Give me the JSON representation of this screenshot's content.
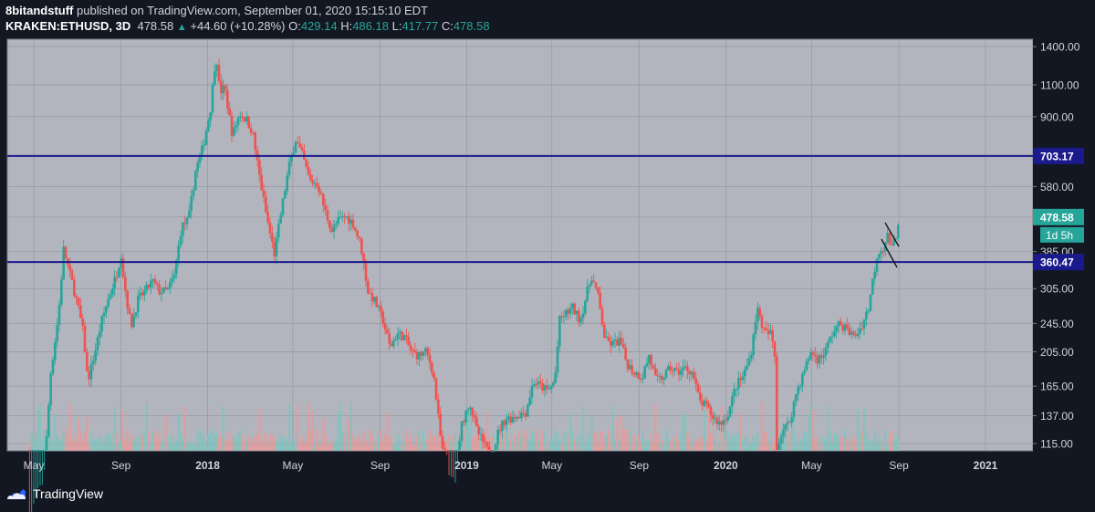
{
  "header": {
    "author": "8bitandstuff",
    "published": "published on TradingView.com, September 01, 2020 15:15:10 EDT",
    "symbol": "KRAKEN:ETHUSD, 3D",
    "price": "478.58",
    "change": "+44.60 (+10.28%)",
    "o_label": "O:",
    "o_value": "429.14",
    "h_label": "H:",
    "h_value": "486.18",
    "l_label": "L:",
    "l_value": "417.77",
    "c_label": "C:",
    "c_value": "478.58"
  },
  "footer": {
    "brand": "TradingView"
  },
  "colors": {
    "up": "#26a69a",
    "down": "#ef5350",
    "level": "#1a1a8c",
    "plot_bg": "#b2b5be",
    "page_bg": "#131722"
  },
  "chart_data": {
    "type": "candlestick",
    "y_scale": "log",
    "y_ticks": [
      "1400.00",
      "1100.00",
      "900.00",
      "703.17",
      "580.00",
      "478.58",
      "385.00",
      "360.47",
      "305.00",
      "245.00",
      "205.00",
      "165.00",
      "137.00",
      "115.00"
    ],
    "y_tick_values": [
      1400,
      1100,
      900,
      703.17,
      580,
      478.58,
      385,
      360.47,
      305,
      245,
      205,
      165,
      137,
      115
    ],
    "x_ticks": [
      "May",
      "Sep",
      "2018",
      "May",
      "Sep",
      "2019",
      "May",
      "Sep",
      "2020",
      "May",
      "Sep",
      "2021"
    ],
    "x_tick_dates": [
      "2017-05-01",
      "2017-09-01",
      "2018-01-01",
      "2018-05-01",
      "2018-09-01",
      "2019-01-01",
      "2019-05-01",
      "2019-09-01",
      "2020-01-01",
      "2020-05-01",
      "2020-09-01",
      "2021-01-01"
    ],
    "levels": [
      {
        "label": "703.17",
        "value": 703.17
      },
      {
        "label": "360.47",
        "value": 360.47
      }
    ],
    "last_price": {
      "label": "478.58",
      "value": 478.58
    },
    "countdown": "1d 5h",
    "series": [
      {
        "points": [
          [
            "2017-04-25",
            70
          ],
          [
            "2017-05-15",
            90
          ],
          [
            "2017-05-25",
            180
          ],
          [
            "2017-06-05",
            260
          ],
          [
            "2017-06-12",
            390
          ],
          [
            "2017-06-20",
            340
          ],
          [
            "2017-07-01",
            280
          ],
          [
            "2017-07-10",
            230
          ],
          [
            "2017-07-16",
            170
          ],
          [
            "2017-07-25",
            200
          ],
          [
            "2017-08-05",
            250
          ],
          [
            "2017-08-15",
            290
          ],
          [
            "2017-08-25",
            330
          ],
          [
            "2017-09-01",
            380
          ],
          [
            "2017-09-05",
            320
          ],
          [
            "2017-09-15",
            240
          ],
          [
            "2017-09-25",
            285
          ],
          [
            "2017-10-05",
            300
          ],
          [
            "2017-10-15",
            320
          ],
          [
            "2017-10-25",
            300
          ],
          [
            "2017-11-05",
            300
          ],
          [
            "2017-11-15",
            330
          ],
          [
            "2017-11-25",
            450
          ],
          [
            "2017-12-05",
            470
          ],
          [
            "2017-12-15",
            640
          ],
          [
            "2017-12-25",
            740
          ],
          [
            "2018-01-05",
            950
          ],
          [
            "2018-01-13",
            1350
          ],
          [
            "2018-01-18",
            1050
          ],
          [
            "2018-01-25",
            1080
          ],
          [
            "2018-02-05",
            800
          ],
          [
            "2018-02-15",
            920
          ],
          [
            "2018-02-25",
            880
          ],
          [
            "2018-03-05",
            820
          ],
          [
            "2018-03-15",
            620
          ],
          [
            "2018-03-25",
            480
          ],
          [
            "2018-04-05",
            380
          ],
          [
            "2018-04-15",
            500
          ],
          [
            "2018-04-25",
            650
          ],
          [
            "2018-05-05",
            780
          ],
          [
            "2018-05-15",
            700
          ],
          [
            "2018-05-25",
            600
          ],
          [
            "2018-06-05",
            590
          ],
          [
            "2018-06-15",
            500
          ],
          [
            "2018-06-25",
            440
          ],
          [
            "2018-07-05",
            470
          ],
          [
            "2018-07-15",
            480
          ],
          [
            "2018-07-25",
            460
          ],
          [
            "2018-08-05",
            400
          ],
          [
            "2018-08-15",
            300
          ],
          [
            "2018-08-25",
            280
          ],
          [
            "2018-09-05",
            250
          ],
          [
            "2018-09-15",
            210
          ],
          [
            "2018-09-25",
            230
          ],
          [
            "2018-10-05",
            225
          ],
          [
            "2018-10-15",
            205
          ],
          [
            "2018-10-25",
            200
          ],
          [
            "2018-11-05",
            205
          ],
          [
            "2018-11-15",
            180
          ],
          [
            "2018-11-25",
            120
          ],
          [
            "2018-12-05",
            90
          ],
          [
            "2018-12-15",
            85
          ],
          [
            "2018-12-25",
            130
          ],
          [
            "2019-01-05",
            150
          ],
          [
            "2019-01-15",
            125
          ],
          [
            "2019-01-25",
            115
          ],
          [
            "2019-02-05",
            105
          ],
          [
            "2019-02-15",
            125
          ],
          [
            "2019-02-25",
            135
          ],
          [
            "2019-03-05",
            135
          ],
          [
            "2019-03-15",
            138
          ],
          [
            "2019-03-25",
            140
          ],
          [
            "2019-04-05",
            170
          ],
          [
            "2019-04-15",
            165
          ],
          [
            "2019-04-25",
            160
          ],
          [
            "2019-05-05",
            170
          ],
          [
            "2019-05-12",
            250
          ],
          [
            "2019-05-20",
            260
          ],
          [
            "2019-05-30",
            270
          ],
          [
            "2019-06-10",
            250
          ],
          [
            "2019-06-20",
            300
          ],
          [
            "2019-06-26",
            330
          ],
          [
            "2019-07-05",
            290
          ],
          [
            "2019-07-15",
            220
          ],
          [
            "2019-07-25",
            215
          ],
          [
            "2019-08-05",
            220
          ],
          [
            "2019-08-15",
            190
          ],
          [
            "2019-08-25",
            180
          ],
          [
            "2019-09-05",
            175
          ],
          [
            "2019-09-15",
            200
          ],
          [
            "2019-09-25",
            170
          ],
          [
            "2019-10-05",
            175
          ],
          [
            "2019-10-15",
            185
          ],
          [
            "2019-10-25",
            180
          ],
          [
            "2019-11-05",
            185
          ],
          [
            "2019-11-15",
            180
          ],
          [
            "2019-11-25",
            150
          ],
          [
            "2019-12-05",
            145
          ],
          [
            "2019-12-15",
            135
          ],
          [
            "2019-12-25",
            130
          ],
          [
            "2020-01-05",
            140
          ],
          [
            "2020-01-15",
            165
          ],
          [
            "2020-01-25",
            175
          ],
          [
            "2020-02-05",
            200
          ],
          [
            "2020-02-14",
            270
          ],
          [
            "2020-02-25",
            230
          ],
          [
            "2020-03-05",
            230
          ],
          [
            "2020-03-10",
            200
          ],
          [
            "2020-03-13",
            110
          ],
          [
            "2020-03-20",
            125
          ],
          [
            "2020-03-30",
            130
          ],
          [
            "2020-04-10",
            160
          ],
          [
            "2020-04-20",
            180
          ],
          [
            "2020-04-30",
            205
          ],
          [
            "2020-05-10",
            195
          ],
          [
            "2020-05-20",
            205
          ],
          [
            "2020-05-30",
            230
          ],
          [
            "2020-06-10",
            245
          ],
          [
            "2020-06-20",
            235
          ],
          [
            "2020-06-30",
            225
          ],
          [
            "2020-07-10",
            240
          ],
          [
            "2020-07-20",
            270
          ],
          [
            "2020-07-26",
            320
          ],
          [
            "2020-08-02",
            385
          ],
          [
            "2020-08-10",
            395
          ],
          [
            "2020-08-16",
            425
          ],
          [
            "2020-08-22",
            390
          ],
          [
            "2020-08-28",
            430
          ],
          [
            "2020-09-01",
            478.58
          ]
        ]
      }
    ]
  }
}
